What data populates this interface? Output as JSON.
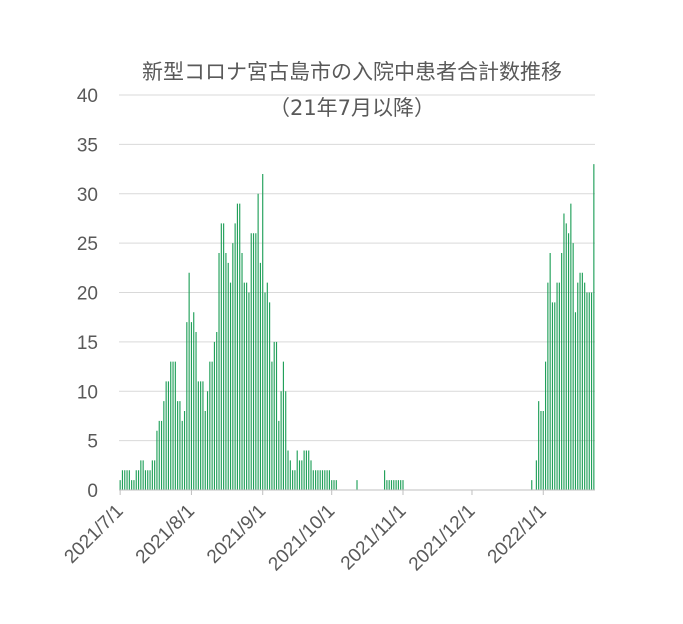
{
  "chart_data": {
    "type": "bar",
    "title": "新型コロナ宮古島市の入院中患者合計数推移",
    "subtitle": "（21年7月以降）",
    "xlabel": "",
    "ylabel": "",
    "ylim": [
      0,
      40
    ],
    "yticks": [
      "0",
      "5",
      "10",
      "15",
      "20",
      "25",
      "30",
      "35",
      "40"
    ],
    "xtick_labels": [
      "2021/7/1",
      "2021/8/1",
      "2021/9/1",
      "2021/10/1",
      "2021/11/1",
      "2021/12/1",
      "2022/1/1"
    ],
    "grid": true,
    "legend": "none",
    "bar_color": "#21a05a",
    "x_start": "2021/7/1",
    "x_end": "2022/1/29",
    "values": [
      1,
      2,
      2,
      2,
      2,
      1,
      1,
      2,
      2,
      3,
      3,
      2,
      2,
      2,
      3,
      3,
      6,
      7,
      7,
      9,
      11,
      11,
      13,
      13,
      13,
      9,
      9,
      7,
      8,
      17,
      22,
      17,
      18,
      16,
      11,
      11,
      11,
      8,
      10,
      13,
      13,
      15,
      16,
      24,
      27,
      27,
      24,
      23,
      21,
      25,
      27,
      29,
      29,
      24,
      21,
      21,
      20,
      26,
      26,
      26,
      30,
      23,
      32,
      20,
      21,
      19,
      13,
      15,
      15,
      7,
      10,
      13,
      10,
      4,
      3,
      2,
      2,
      4,
      3,
      3,
      4,
      4,
      4,
      3,
      2,
      2,
      2,
      2,
      2,
      2,
      2,
      2,
      1,
      1,
      1,
      0,
      0,
      0,
      0,
      0,
      0,
      0,
      0,
      1,
      0,
      0,
      0,
      0,
      0,
      0,
      0,
      0,
      0,
      0,
      0,
      2,
      1,
      1,
      1,
      1,
      1,
      1,
      1,
      1,
      0,
      0,
      0,
      0,
      0,
      0,
      0,
      0,
      0,
      0,
      0,
      0,
      0,
      0,
      0,
      0,
      0,
      0,
      0,
      0,
      0,
      0,
      0,
      0,
      0,
      0,
      0,
      0,
      0,
      0,
      0,
      0,
      0,
      0,
      0,
      0,
      0,
      0,
      0,
      0,
      0,
      0,
      0,
      0,
      0,
      0,
      0,
      0,
      0,
      0,
      0,
      0,
      0,
      0,
      0,
      1,
      0,
      3,
      9,
      8,
      8,
      13,
      21,
      24,
      19,
      19,
      21,
      21,
      24,
      28,
      27,
      26,
      29,
      25,
      18,
      21,
      22,
      22,
      21,
      20,
      20,
      20,
      33
    ]
  }
}
